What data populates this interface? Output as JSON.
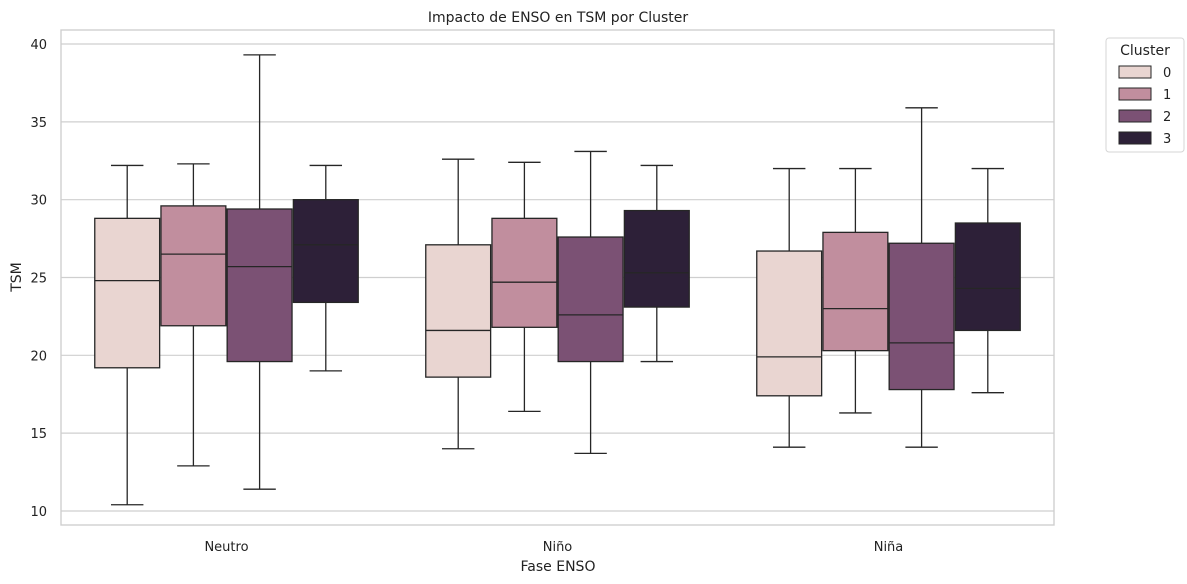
{
  "chart_data": {
    "type": "boxplot",
    "title": "Impacto de ENSO en TSM por Cluster",
    "xlabel": "Fase ENSO",
    "ylabel": "TSM",
    "ylim": [
      9.1,
      40.9
    ],
    "yticks": [
      10,
      15,
      20,
      25,
      30,
      35,
      40
    ],
    "grid": "horizontal",
    "categories": [
      "Neutro",
      "Niño",
      "Niña"
    ],
    "legend": {
      "title": "Cluster",
      "position": "outside top-right"
    },
    "series": [
      {
        "name": "0",
        "color": "#e9d5d1",
        "boxes": [
          {
            "min": 10.4,
            "q1": 19.2,
            "median": 24.8,
            "q3": 28.8,
            "max": 32.2
          },
          {
            "min": 14.0,
            "q1": 18.6,
            "median": 21.6,
            "q3": 27.1,
            "max": 32.6
          },
          {
            "min": 14.1,
            "q1": 17.4,
            "median": 19.9,
            "q3": 26.7,
            "max": 32.0
          }
        ]
      },
      {
        "name": "1",
        "color": "#c18e9e",
        "boxes": [
          {
            "min": 12.9,
            "q1": 21.9,
            "median": 26.5,
            "q3": 29.6,
            "max": 32.3
          },
          {
            "min": 16.4,
            "q1": 21.8,
            "median": 24.7,
            "q3": 28.8,
            "max": 32.4
          },
          {
            "min": 16.3,
            "q1": 20.3,
            "median": 23.0,
            "q3": 27.9,
            "max": 32.0
          }
        ]
      },
      {
        "name": "2",
        "color": "#7b5174",
        "boxes": [
          {
            "min": 11.4,
            "q1": 19.6,
            "median": 25.7,
            "q3": 29.4,
            "max": 39.3
          },
          {
            "min": 13.7,
            "q1": 19.6,
            "median": 22.6,
            "q3": 27.6,
            "max": 33.1
          },
          {
            "min": 14.1,
            "q1": 17.8,
            "median": 20.8,
            "q3": 27.2,
            "max": 35.9
          }
        ]
      },
      {
        "name": "3",
        "color": "#2d2038",
        "boxes": [
          {
            "min": 19.0,
            "q1": 23.4,
            "median": 27.1,
            "q3": 30.0,
            "max": 32.2
          },
          {
            "min": 19.6,
            "q1": 23.1,
            "median": 25.3,
            "q3": 29.3,
            "max": 32.2
          },
          {
            "min": 17.6,
            "q1": 21.6,
            "median": 24.3,
            "q3": 28.5,
            "max": 32.0
          }
        ]
      }
    ]
  }
}
